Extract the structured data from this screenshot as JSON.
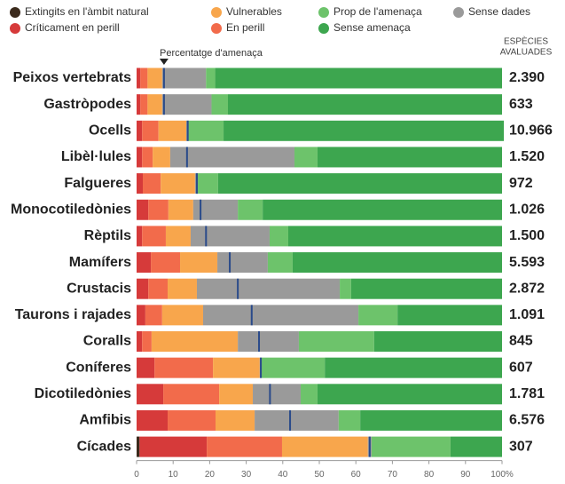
{
  "chart_data": {
    "type": "stacked-barh",
    "categories": [
      "Peixos vertebrats",
      "Gastròpodes",
      "Ocells",
      "Libèl·lules",
      "Falgueres",
      "Monocotiledònies",
      "Rèptils",
      "Mamífers",
      "Crustacis",
      "Taurons i rajades",
      "Coralls",
      "Coníferes",
      "Dicotiledònies",
      "Amfibis",
      "Cícades"
    ],
    "series": [
      {
        "name": "Extingits en l'àmbit natural",
        "color": "#3b2a1c",
        "values": [
          0,
          0,
          0,
          0,
          0,
          0,
          0,
          0,
          0,
          0,
          0,
          0,
          0,
          0,
          0.8
        ]
      },
      {
        "name": "Críticament en perill",
        "color": "#d63a3a",
        "values": [
          1,
          1,
          1.5,
          1.5,
          1.7,
          3.2,
          1.5,
          3.9,
          3.2,
          2.4,
          1.5,
          4.9,
          7.3,
          8.5,
          18.4
        ]
      },
      {
        "name": "En perill",
        "color": "#f26b4b",
        "values": [
          2,
          2,
          4.5,
          2.9,
          4.9,
          5.5,
          6.5,
          8,
          5.3,
          4.6,
          2.6,
          16,
          15.3,
          13.1,
          20.6
        ]
      },
      {
        "name": "Vulnerables",
        "color": "#f8a64c",
        "values": [
          4,
          4,
          7.6,
          4.8,
          9.4,
          6.8,
          6.8,
          10.2,
          8,
          11.2,
          23.6,
          12.8,
          9.2,
          10.7,
          23.5
        ]
      },
      {
        "name": "Sense dades",
        "color": "#9a9a9a",
        "values": [
          12,
          13.5,
          0.5,
          34,
          0.5,
          12.2,
          21.6,
          13.8,
          39.1,
          42.5,
          16.7,
          0.5,
          13.1,
          23,
          1
        ]
      },
      {
        "name": "Prop de l'amenaça",
        "color": "#6dc36b",
        "values": [
          2.5,
          4.5,
          9.7,
          6.3,
          5.8,
          6.8,
          5.1,
          6.8,
          3.1,
          10.7,
          20.6,
          17.3,
          4.6,
          5.9,
          21.6
        ]
      },
      {
        "name": "Sense amenaça",
        "color": "#3da64f",
        "values": [
          78.5,
          75,
          76.7,
          50.5,
          77.7,
          65.5,
          58.5,
          57.3,
          41.3,
          28.6,
          35,
          48.5,
          50.5,
          38.8,
          14.1
        ]
      }
    ],
    "threat_pct": [
      7.5,
      7.5,
      14,
      13.8,
      16.5,
      17.5,
      19,
      25.5,
      27.7,
      31.5,
      33.5,
      34,
      36.5,
      42,
      63.8
    ],
    "threat_label": "Percentatge d'amenaça",
    "assessed_header": [
      "ESPÈCIES",
      "AVALUADES"
    ],
    "assessed_species": [
      "2.390",
      "633",
      "10.966",
      "1.520",
      "972",
      "1.026",
      "1.500",
      "5.593",
      "2.872",
      "1.091",
      "845",
      "607",
      "1.781",
      "6.576",
      "307"
    ],
    "xlim": [
      0,
      100
    ],
    "xticks": [
      0,
      10,
      20,
      30,
      40,
      50,
      60,
      70,
      80,
      90,
      {
        "value": 100,
        "label": "100%"
      }
    ]
  }
}
